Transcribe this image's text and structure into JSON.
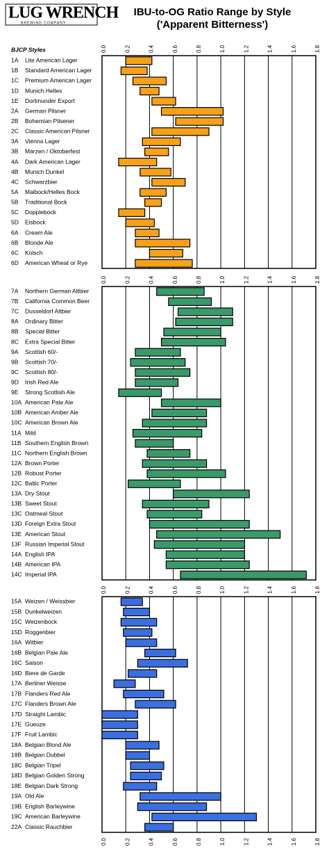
{
  "header": {
    "logo": "LUG WRENCH",
    "logo_tagline": "BREWING COMPANY",
    "title": "IBU-to-OG Ratio Range by Style",
    "subtitle": "('Apparent Bitterness')",
    "styles_label": "BJCP Styles"
  },
  "chart_data": [
    {
      "type": "floating-bar",
      "color": "#f7a11a",
      "codes": [
        "1A",
        "1B",
        "1C",
        "1D",
        "1E",
        "2A",
        "2B",
        "2C",
        "3A",
        "3B",
        "4A",
        "4B",
        "4C",
        "5A",
        "5B",
        "5C",
        "5D",
        "6A",
        "6B",
        "6C",
        "6D"
      ],
      "categories": [
        "Lite American Lager",
        "Standard American Lager",
        "Premium American Lager",
        "Munich Helles",
        "Dortmunder Export",
        "German Pilsner",
        "Bohemian Pilsener",
        "Classic American Pilsner",
        "Vienna Lager",
        "Marzen / Oktoberfest",
        "Dark American Lager",
        "Munich Dunkel",
        "Schwarzbier",
        "Maibock/Helles Bock",
        "Traditional Bock",
        "Dopplebock",
        "Eisbock",
        "Cream Ale",
        "Blonde Ale",
        "Kolsch",
        "American Wheat or Rye"
      ],
      "low": [
        0.2,
        0.16,
        0.26,
        0.32,
        0.42,
        0.5,
        0.62,
        0.42,
        0.34,
        0.36,
        0.14,
        0.32,
        0.42,
        0.32,
        0.36,
        0.14,
        0.2,
        0.28,
        0.28,
        0.4,
        0.28
      ],
      "high": [
        0.42,
        0.38,
        0.54,
        0.48,
        0.62,
        1.02,
        1.02,
        0.9,
        0.66,
        0.56,
        0.46,
        0.58,
        0.7,
        0.54,
        0.5,
        0.36,
        0.44,
        0.48,
        0.74,
        0.68,
        0.76
      ],
      "xlim": [
        0,
        1.8
      ],
      "xticks": [
        {
          "value": 0,
          "label": "0.0"
        },
        0.2,
        0.4,
        0.6,
        0.8,
        {
          "value": 1,
          "label": "1.0"
        },
        1.2,
        1.4,
        1.6,
        1.8
      ],
      "grid": true
    },
    {
      "type": "floating-bar",
      "color": "#3a9a6a",
      "codes": [
        "7A",
        "7B",
        "7C",
        "8A",
        "8B",
        "8C",
        "9A",
        "9B",
        "9C",
        "9D",
        "9E",
        "10A",
        "10B",
        "10C",
        "11A",
        "11B",
        "11C",
        "12A",
        "12B",
        "12C",
        "13A",
        "13B",
        "13C",
        "13D",
        "13E",
        "13F",
        "14A",
        "14B",
        "14C"
      ],
      "categories": [
        "Northern German Altbier",
        "California Common Beer",
        "Dusseldorf Altbier",
        "Ordinary Bitter",
        "Special Bitter",
        "Extra Special Bitter",
        "Scottish 60/-",
        "Scottish 70/-",
        "Scottish 80/-",
        "Irish Red Ale",
        "Strong Scottish Ale",
        "American Pale Ale",
        "American Amber Ale",
        "American Brown Ale",
        "Mild",
        "Southern English Brown",
        "Northern English Brown",
        "Brown Porter",
        "Robust Porter",
        "Baltic Porter",
        "Dry Stout",
        "Sweet Stout",
        "Oatmeal Stout",
        "Foreign Extra Stout",
        "American Stout",
        "Russian Imperial Stout",
        "English IPA",
        "American IPA",
        "Imperial IPA"
      ],
      "low": [
        0.46,
        0.56,
        0.64,
        0.62,
        0.52,
        0.5,
        0.28,
        0.24,
        0.28,
        0.28,
        0.14,
        0.5,
        0.42,
        0.34,
        0.26,
        0.28,
        0.38,
        0.34,
        0.38,
        0.22,
        0.6,
        0.34,
        0.38,
        0.4,
        0.46,
        0.44,
        0.54,
        0.54,
        0.66
      ],
      "high": [
        0.86,
        0.92,
        1.1,
        1.1,
        1.0,
        1.04,
        0.66,
        0.7,
        0.74,
        0.64,
        0.5,
        1.0,
        0.88,
        0.88,
        0.84,
        0.6,
        0.74,
        0.88,
        1.04,
        0.66,
        1.24,
        0.9,
        0.84,
        1.24,
        1.5,
        1.2,
        1.2,
        1.24,
        1.72
      ],
      "xlim": [
        0,
        1.8
      ],
      "xticks": [
        {
          "value": 0,
          "label": "0.0"
        },
        0.2,
        0.4,
        0.6,
        0.8,
        {
          "value": 1,
          "label": "1.0"
        },
        1.2,
        1.4,
        1.6,
        1.8
      ],
      "grid": true
    },
    {
      "type": "floating-bar",
      "color": "#3b6fe0",
      "codes": [
        "15A",
        "15B",
        "15C",
        "15D",
        "16A",
        "16B",
        "16C",
        "16D",
        "17A",
        "17B",
        "17C",
        "17D",
        "17E",
        "17F",
        "18A",
        "18B",
        "18C",
        "18D",
        "18E",
        "19A",
        "19B",
        "19C",
        "22A"
      ],
      "categories": [
        "Weizen / Weissbier",
        "Dunkelweizen",
        "Weizenbock",
        "Roggenbier",
        "Witbier",
        "Belgian Pale Ale",
        "Saison",
        "Biere de Garde",
        "Berliner Weisse",
        "Flanders Red Ale",
        "Flanders Brown Ale",
        "Straight Lambic",
        "Gueuze",
        "Fruit Lambic",
        "Belgian Blond Ale",
        "Belgian Dubbel",
        "Belgian Tripel",
        "Belgian Golden Strong",
        "Belgian Dark Strong",
        "Old Ale",
        "English Barleywine",
        "American Barleywine",
        "Classic Rauchbier"
      ],
      "low": [
        0.16,
        0.18,
        0.16,
        0.18,
        0.2,
        0.36,
        0.3,
        0.22,
        0.1,
        0.18,
        0.28,
        0.0,
        0.0,
        0.0,
        0.2,
        0.2,
        0.24,
        0.24,
        0.18,
        0.32,
        0.3,
        0.42,
        0.36
      ],
      "high": [
        0.34,
        0.4,
        0.46,
        0.42,
        0.46,
        0.62,
        0.72,
        0.46,
        0.28,
        0.52,
        0.62,
        0.3,
        0.3,
        0.3,
        0.48,
        0.4,
        0.52,
        0.5,
        0.46,
        1.0,
        0.88,
        1.3,
        0.6
      ],
      "xlim": [
        0,
        1.8
      ],
      "xticks": [
        {
          "value": 0,
          "label": "0.0"
        },
        0.2,
        0.4,
        0.6,
        0.8,
        {
          "value": 1,
          "label": "1.0"
        },
        1.2,
        1.4,
        1.6,
        1.8
      ],
      "grid": true,
      "bottom_ticks": true
    }
  ]
}
